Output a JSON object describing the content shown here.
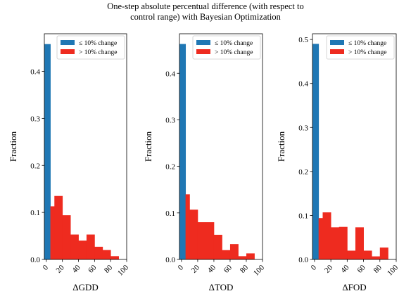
{
  "title_lines": [
    "One-step absolute percentual difference (with respect to",
    "control range) with Bayesian Optimization"
  ],
  "colors": {
    "low": "#1f77b4",
    "high": "#ee2b1f"
  },
  "chart_data": [
    {
      "type": "bar",
      "xlabel": "ΔGDD",
      "ylabel": "Fraction",
      "xlim": [
        -2.5,
        100
      ],
      "ylim": [
        0,
        0.48
      ],
      "xticks": [
        "0",
        "20",
        "40",
        "60",
        "80",
        "100"
      ],
      "yticks": [
        "0.0",
        "0.1",
        "0.2",
        "0.3",
        "0.4"
      ],
      "legend": {
        "loc": "upper right",
        "entries": [
          "≤ 10% change",
          "> 10% change"
        ]
      },
      "series": [
        {
          "name": "≤ 10% change",
          "color": "low",
          "bins": [
            [
              -2.5,
              5,
              0.458
            ]
          ]
        },
        {
          "name": "> 10% change",
          "color": "high",
          "bins": [
            [
              5,
              10,
              0.113
            ],
            [
              10,
              20,
              0.135
            ],
            [
              20,
              30,
              0.094
            ],
            [
              30,
              40,
              0.053
            ],
            [
              40,
              50,
              0.04
            ],
            [
              50,
              60,
              0.053
            ],
            [
              60,
              70,
              0.027
            ],
            [
              70,
              80,
              0.02
            ],
            [
              80,
              90,
              0.007
            ]
          ]
        }
      ]
    },
    {
      "type": "bar",
      "xlabel": "ΔTOD",
      "ylabel": "Fraction",
      "xlim": [
        -2.5,
        100
      ],
      "ylim": [
        0,
        0.485
      ],
      "xticks": [
        "0",
        "20",
        "40",
        "60",
        "80",
        "100"
      ],
      "yticks": [
        "0.0",
        "0.1",
        "0.2",
        "0.3",
        "0.4"
      ],
      "legend": {
        "loc": "upper right",
        "entries": [
          "≤ 10% change",
          "> 10% change"
        ]
      },
      "series": [
        {
          "name": "≤ 10% change",
          "color": "low",
          "bins": [
            [
              -2.5,
              5,
              0.463
            ]
          ]
        },
        {
          "name": "> 10% change",
          "color": "high",
          "bins": [
            [
              5,
              10,
              0.14
            ],
            [
              10,
              20,
              0.107
            ],
            [
              20,
              30,
              0.08
            ],
            [
              30,
              40,
              0.08
            ],
            [
              40,
              50,
              0.053
            ],
            [
              50,
              60,
              0.02
            ],
            [
              60,
              70,
              0.033
            ],
            [
              70,
              80,
              0.007
            ],
            [
              80,
              90,
              0.013
            ]
          ]
        }
      ]
    },
    {
      "type": "bar",
      "xlabel": "ΔFOD",
      "ylabel": "Fraction",
      "xlim": [
        -2.5,
        100
      ],
      "ylim": [
        0,
        0.513
      ],
      "xticks": [
        "0",
        "20",
        "40",
        "60",
        "80",
        "100"
      ],
      "yticks": [
        "0.0",
        "0.1",
        "0.2",
        "0.3",
        "0.4",
        "0.5"
      ],
      "legend": {
        "loc": "upper right",
        "entries": [
          "≤ 10% change",
          "> 10% change"
        ]
      },
      "series": [
        {
          "name": "≤ 10% change",
          "color": "low",
          "bins": [
            [
              -2.5,
              5,
              0.49
            ]
          ]
        },
        {
          "name": "> 10% change",
          "color": "high",
          "bins": [
            [
              5,
              10,
              0.094
            ],
            [
              10,
              20,
              0.107
            ],
            [
              20,
              30,
              0.073
            ],
            [
              30,
              40,
              0.074
            ],
            [
              40,
              50,
              0.02
            ],
            [
              50,
              60,
              0.073
            ],
            [
              60,
              70,
              0.02
            ],
            [
              70,
              80,
              0.007
            ],
            [
              80,
              90,
              0.027
            ]
          ]
        }
      ]
    }
  ]
}
